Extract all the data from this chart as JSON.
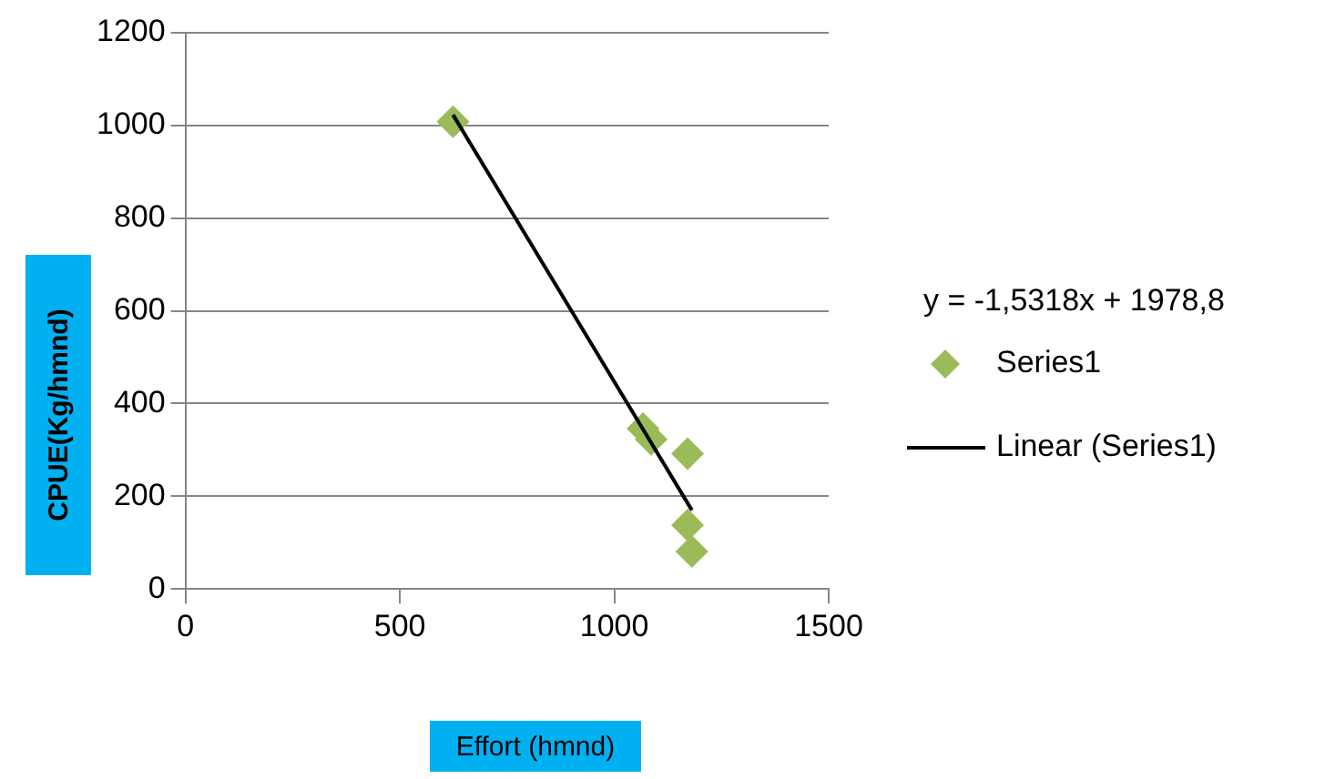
{
  "chart_data": {
    "type": "scatter",
    "xlabel": "Effort (hmnd)",
    "ylabel": "CPUE(Kg/hmnd)",
    "annotations": [
      "y = -1,5318x + 1978,8"
    ],
    "series": [
      {
        "name": "Series1",
        "color": "#9bbb59",
        "marker": "diamond",
        "x": [
          624,
          1067,
          1086,
          1171,
          1171,
          1181
        ],
        "values": [
          1008,
          346,
          323,
          292,
          138,
          81
        ]
      },
      {
        "name": "Linear (Series1)",
        "type": "line",
        "color": "#000000",
        "marker": "none",
        "line_style": "solid",
        "x": [
          624,
          1181
        ],
        "values": [
          1023,
          170
        ]
      }
    ],
    "xlim": [
      0,
      1500
    ],
    "xticks": [
      0,
      500,
      1000,
      1500
    ],
    "ylim": [
      0,
      1200
    ],
    "yticks": [
      0,
      200,
      400,
      600,
      800,
      1000,
      1200
    ],
    "grid": "y",
    "legend": "right"
  }
}
